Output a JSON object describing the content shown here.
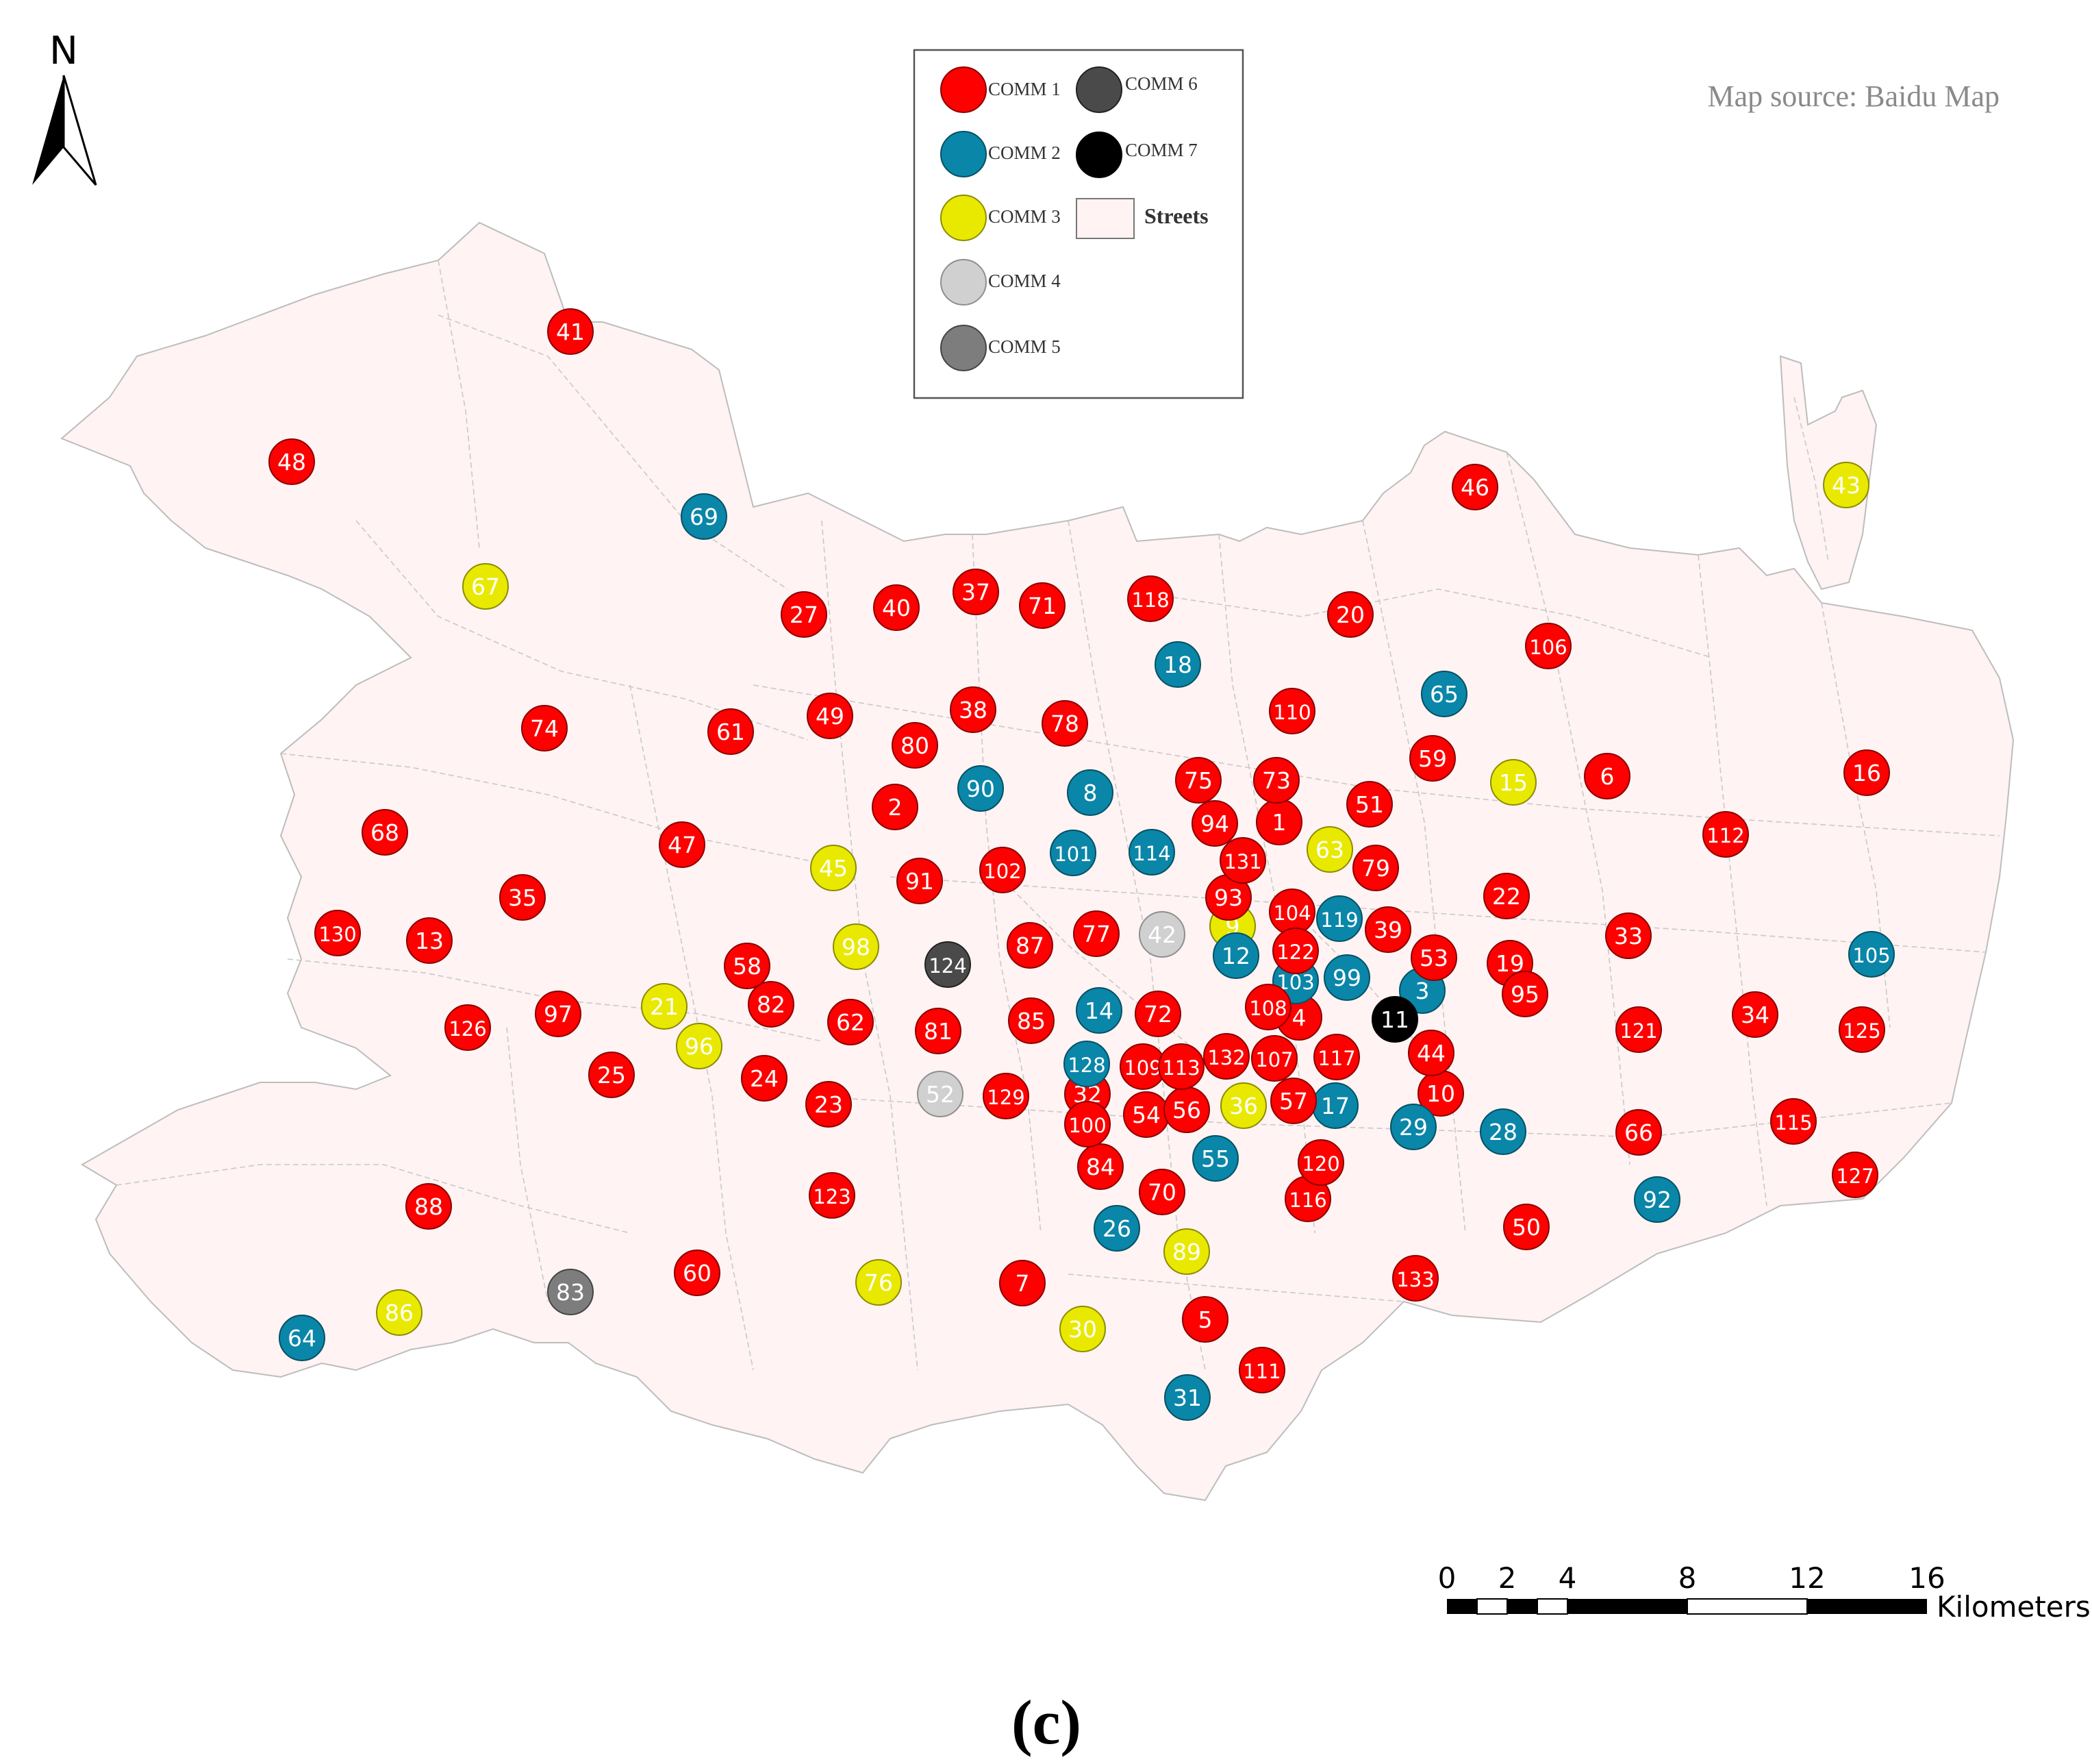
{
  "north_arrow": {
    "label": "N"
  },
  "source_note": "Map source: Baidu Map",
  "legend": {
    "items": [
      {
        "label": "COMM 1",
        "color": "#ff0000"
      },
      {
        "label": "COMM 2",
        "color": "#0a86a8"
      },
      {
        "label": "COMM 3",
        "color": "#e9e900"
      },
      {
        "label": "COMM 4",
        "color": "#d0d0d0"
      },
      {
        "label": "COMM 5",
        "color": "#7d7d7d"
      },
      {
        "label": "COMM 6",
        "color": "#4a4a4a"
      },
      {
        "label": "COMM 7",
        "color": "#000000"
      }
    ],
    "streets_label": "Streets",
    "streets_color": "#fff3f3"
  },
  "scale_bar": {
    "ticks": [
      "0",
      "2",
      "4",
      "8",
      "12",
      "16"
    ],
    "unit": "Kilometers"
  },
  "panel_label": "(c)",
  "points": [
    {
      "id": "1",
      "c": 1
    },
    {
      "id": "2",
      "c": 1
    },
    {
      "id": "3",
      "c": 2
    },
    {
      "id": "4",
      "c": 1
    },
    {
      "id": "5",
      "c": 1
    },
    {
      "id": "6",
      "c": 1
    },
    {
      "id": "7",
      "c": 1
    },
    {
      "id": "8",
      "c": 2
    },
    {
      "id": "9",
      "c": 3
    },
    {
      "id": "10",
      "c": 1
    },
    {
      "id": "11",
      "c": 7
    },
    {
      "id": "12",
      "c": 2
    },
    {
      "id": "13",
      "c": 1
    },
    {
      "id": "14",
      "c": 2
    },
    {
      "id": "15",
      "c": 3
    },
    {
      "id": "16",
      "c": 1
    },
    {
      "id": "17",
      "c": 2
    },
    {
      "id": "18",
      "c": 2
    },
    {
      "id": "19",
      "c": 1
    },
    {
      "id": "20",
      "c": 1
    },
    {
      "id": "21",
      "c": 3
    },
    {
      "id": "22",
      "c": 1
    },
    {
      "id": "23",
      "c": 1
    },
    {
      "id": "24",
      "c": 1
    },
    {
      "id": "25",
      "c": 1
    },
    {
      "id": "26",
      "c": 2
    },
    {
      "id": "27",
      "c": 1
    },
    {
      "id": "28",
      "c": 2
    },
    {
      "id": "29",
      "c": 2
    },
    {
      "id": "30",
      "c": 3
    },
    {
      "id": "31",
      "c": 2
    },
    {
      "id": "32",
      "c": 1
    },
    {
      "id": "33",
      "c": 1
    },
    {
      "id": "34",
      "c": 1
    },
    {
      "id": "35",
      "c": 1
    },
    {
      "id": "36",
      "c": 3
    },
    {
      "id": "37",
      "c": 1
    },
    {
      "id": "38",
      "c": 1
    },
    {
      "id": "39",
      "c": 1
    },
    {
      "id": "40",
      "c": 1
    },
    {
      "id": "41",
      "c": 1
    },
    {
      "id": "42",
      "c": 4
    },
    {
      "id": "43",
      "c": 3
    },
    {
      "id": "44",
      "c": 1
    },
    {
      "id": "45",
      "c": 3
    },
    {
      "id": "46",
      "c": 1
    },
    {
      "id": "47",
      "c": 1
    },
    {
      "id": "48",
      "c": 1
    },
    {
      "id": "49",
      "c": 1
    },
    {
      "id": "50",
      "c": 1
    },
    {
      "id": "51",
      "c": 1
    },
    {
      "id": "52",
      "c": 4
    },
    {
      "id": "53",
      "c": 1
    },
    {
      "id": "54",
      "c": 1
    },
    {
      "id": "55",
      "c": 2
    },
    {
      "id": "56",
      "c": 1
    },
    {
      "id": "57",
      "c": 1
    },
    {
      "id": "58",
      "c": 1
    },
    {
      "id": "59",
      "c": 1
    },
    {
      "id": "60",
      "c": 1
    },
    {
      "id": "61",
      "c": 1
    },
    {
      "id": "62",
      "c": 1
    },
    {
      "id": "63",
      "c": 3
    },
    {
      "id": "64",
      "c": 2
    },
    {
      "id": "65",
      "c": 2
    },
    {
      "id": "66",
      "c": 1
    },
    {
      "id": "67",
      "c": 3
    },
    {
      "id": "68",
      "c": 1
    },
    {
      "id": "69",
      "c": 2
    },
    {
      "id": "70",
      "c": 1
    },
    {
      "id": "71",
      "c": 1
    },
    {
      "id": "72",
      "c": 1
    },
    {
      "id": "73",
      "c": 1
    },
    {
      "id": "74",
      "c": 1
    },
    {
      "id": "75",
      "c": 1
    },
    {
      "id": "76",
      "c": 3
    },
    {
      "id": "77",
      "c": 1
    },
    {
      "id": "78",
      "c": 1
    },
    {
      "id": "79",
      "c": 1
    },
    {
      "id": "80",
      "c": 1
    },
    {
      "id": "81",
      "c": 1
    },
    {
      "id": "82",
      "c": 1
    },
    {
      "id": "83",
      "c": 5
    },
    {
      "id": "84",
      "c": 1
    },
    {
      "id": "85",
      "c": 1
    },
    {
      "id": "86",
      "c": 3
    },
    {
      "id": "87",
      "c": 1
    },
    {
      "id": "88",
      "c": 1
    },
    {
      "id": "89",
      "c": 3
    },
    {
      "id": "90",
      "c": 2
    },
    {
      "id": "91",
      "c": 1
    },
    {
      "id": "92",
      "c": 2
    },
    {
      "id": "93",
      "c": 1
    },
    {
      "id": "94",
      "c": 1
    },
    {
      "id": "95",
      "c": 1
    },
    {
      "id": "96",
      "c": 3
    },
    {
      "id": "97",
      "c": 1
    },
    {
      "id": "98",
      "c": 3
    },
    {
      "id": "99",
      "c": 2
    },
    {
      "id": "100",
      "c": 1
    },
    {
      "id": "101",
      "c": 2
    },
    {
      "id": "102",
      "c": 1
    },
    {
      "id": "103",
      "c": 2
    },
    {
      "id": "104",
      "c": 1
    },
    {
      "id": "105",
      "c": 2
    },
    {
      "id": "106",
      "c": 1
    },
    {
      "id": "107",
      "c": 1
    },
    {
      "id": "108",
      "c": 1
    },
    {
      "id": "109",
      "c": 1
    },
    {
      "id": "110",
      "c": 1
    },
    {
      "id": "111",
      "c": 1
    },
    {
      "id": "112",
      "c": 1
    },
    {
      "id": "113",
      "c": 1
    },
    {
      "id": "114",
      "c": 2
    },
    {
      "id": "115",
      "c": 1
    },
    {
      "id": "116",
      "c": 1
    },
    {
      "id": "117",
      "c": 1
    },
    {
      "id": "118",
      "c": 1
    },
    {
      "id": "119",
      "c": 2
    },
    {
      "id": "120",
      "c": 1
    },
    {
      "id": "121",
      "c": 1
    },
    {
      "id": "122",
      "c": 1
    },
    {
      "id": "123",
      "c": 1
    },
    {
      "id": "124",
      "c": 6
    },
    {
      "id": "125",
      "c": 1
    },
    {
      "id": "126",
      "c": 1
    },
    {
      "id": "127",
      "c": 1
    },
    {
      "id": "128",
      "c": 2
    },
    {
      "id": "129",
      "c": 1
    },
    {
      "id": "130",
      "c": 1
    },
    {
      "id": "131",
      "c": 1
    },
    {
      "id": "132",
      "c": 1
    },
    {
      "id": "133",
      "c": 1
    }
  ]
}
